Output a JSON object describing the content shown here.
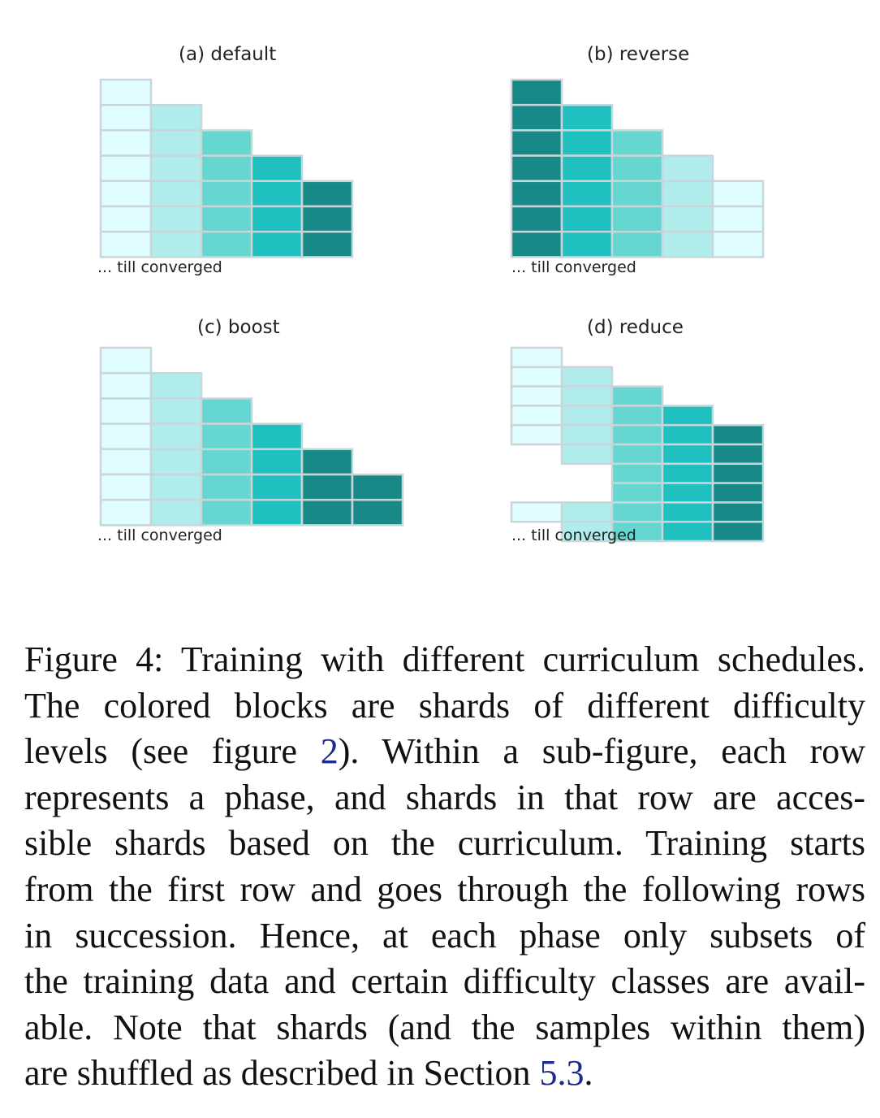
{
  "figure": {
    "colors": {
      "level1": "#e0feff",
      "level2": "#b0ecec",
      "level3": "#66d6d0",
      "level4": "#20c0c0",
      "level5": "#178a88",
      "border": "#c9d6d9"
    },
    "panels": [
      {
        "id": "a",
        "title": "(a) default",
        "note": "... till converged",
        "columns": [
          {
            "level": 1,
            "rows": [
              1,
              2,
              3,
              4,
              5,
              6,
              7
            ]
          },
          {
            "level": 2,
            "rows": [
              2,
              3,
              4,
              5,
              6,
              7
            ]
          },
          {
            "level": 3,
            "rows": [
              3,
              4,
              5,
              6,
              7
            ]
          },
          {
            "level": 4,
            "rows": [
              4,
              5,
              6,
              7
            ]
          },
          {
            "level": 5,
            "rows": [
              5,
              6,
              7
            ]
          }
        ]
      },
      {
        "id": "b",
        "title": "(b) reverse",
        "note": "... till converged",
        "columns": [
          {
            "level": 5,
            "rows": [
              1,
              2,
              3,
              4,
              5,
              6,
              7
            ]
          },
          {
            "level": 4,
            "rows": [
              2,
              3,
              4,
              5,
              6,
              7
            ]
          },
          {
            "level": 3,
            "rows": [
              3,
              4,
              5,
              6,
              7
            ]
          },
          {
            "level": 2,
            "rows": [
              4,
              5,
              6,
              7
            ]
          },
          {
            "level": 1,
            "rows": [
              5,
              6,
              7
            ]
          }
        ]
      },
      {
        "id": "c",
        "title": "(c) boost",
        "note": "... till converged",
        "columns": [
          {
            "level": 1,
            "rows": [
              1,
              2,
              3,
              4,
              5,
              6,
              7
            ]
          },
          {
            "level": 2,
            "rows": [
              2,
              3,
              4,
              5,
              6,
              7
            ]
          },
          {
            "level": 3,
            "rows": [
              3,
              4,
              5,
              6,
              7
            ]
          },
          {
            "level": 4,
            "rows": [
              4,
              5,
              6,
              7
            ]
          },
          {
            "level": 5,
            "rows": [
              5,
              6,
              7
            ]
          },
          {
            "level": 5,
            "rows": [
              6,
              7
            ]
          }
        ]
      },
      {
        "id": "d",
        "title": "(d) reduce",
        "note": "... till converged",
        "columns": [
          {
            "level": 1,
            "rows": [
              1,
              2,
              3,
              4,
              5,
              9
            ]
          },
          {
            "level": 2,
            "rows": [
              2,
              3,
              4,
              5,
              6,
              9,
              10
            ]
          },
          {
            "level": 3,
            "rows": [
              3,
              4,
              5,
              6,
              7,
              8,
              9,
              10
            ]
          },
          {
            "level": 4,
            "rows": [
              4,
              5,
              6,
              7,
              8,
              9,
              10
            ]
          },
          {
            "level": 5,
            "rows": [
              5,
              6,
              7,
              8,
              9,
              10
            ]
          }
        ]
      }
    ]
  },
  "caption": {
    "label": "Figure 4:",
    "lines": [
      [
        {
          "t": "Figure 4: Training with different curriculum schedules."
        }
      ],
      [
        {
          "t": "The colored blocks are shards of different difficulty"
        }
      ],
      [
        {
          "t": "levels (see figure "
        },
        {
          "t": "2",
          "ref": true
        },
        {
          "t": ").  Within a sub-figure, each row"
        }
      ],
      [
        {
          "t": "represents a phase, and shards in that row are acces-"
        }
      ],
      [
        {
          "t": "sible shards based on the curriculum.  Training starts"
        }
      ],
      [
        {
          "t": "from the first row and goes through the following rows"
        }
      ],
      [
        {
          "t": "in succession.  Hence, at each phase only subsets of"
        }
      ],
      [
        {
          "t": "the training data and certain difficulty classes are avail-"
        }
      ],
      [
        {
          "t": "able.  Note that shards (and the samples within them)"
        }
      ],
      [
        {
          "t": "are shuffled as described in Section "
        },
        {
          "t": "5.3",
          "ref": true
        },
        {
          "t": "."
        }
      ]
    ]
  }
}
